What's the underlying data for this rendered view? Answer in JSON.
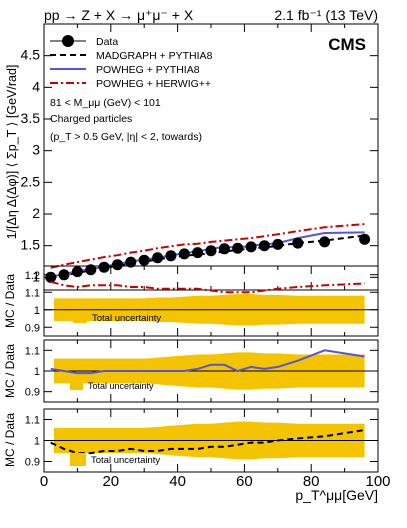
{
  "header": {
    "process": "pp → Z + X → μ⁺μ⁻ + X",
    "lumi": "2.1 fb⁻¹ (13 TeV)"
  },
  "chart_data": [
    {
      "type": "scatter",
      "panel": "main",
      "ylabel": "1/[Δη Δ(Δφ)] ⟨ Σp_T ⟩ [GeV/rad]",
      "ylim": [
        0.8,
        5.0
      ],
      "yticks": [
        "1",
        "1.5",
        "2",
        "2.5",
        "3",
        "3.5",
        "4",
        "4.5"
      ],
      "cms_label": "CMS",
      "annotations": [
        "81 < M_μμ (GeV) < 101",
        "Charged particles",
        "(p_T > 0.5 GeV, |η| < 2, towards)"
      ],
      "legend": [
        "Data",
        "MADGRAPH + PYTHIA8",
        "POWHEG + PYTHIA8",
        "POWHEG + HERWIG++"
      ],
      "legend_placement": "top-left",
      "x": [
        2,
        6,
        10,
        14,
        18,
        22,
        26,
        30,
        34,
        38,
        42,
        46,
        50,
        54,
        58,
        62,
        66,
        70,
        76,
        84,
        96
      ],
      "series": [
        {
          "name": "Data",
          "style": "points",
          "color": "#000000",
          "values": [
            1.0,
            1.04,
            1.09,
            1.12,
            1.16,
            1.2,
            1.24,
            1.27,
            1.31,
            1.34,
            1.37,
            1.39,
            1.42,
            1.45,
            1.46,
            1.48,
            1.5,
            1.52,
            1.54,
            1.56,
            1.6
          ]
        },
        {
          "name": "MADGRAPH + PYTHIA8",
          "style": "dashed",
          "color": "#000000",
          "values": [
            0.99,
            1.03,
            1.07,
            1.11,
            1.15,
            1.18,
            1.22,
            1.25,
            1.28,
            1.32,
            1.34,
            1.36,
            1.38,
            1.41,
            1.43,
            1.46,
            1.47,
            1.5,
            1.54,
            1.58,
            1.66
          ]
        },
        {
          "name": "POWHEG + PYTHIA8",
          "style": "solid",
          "color": "#5555dd",
          "values": [
            1.01,
            1.05,
            1.1,
            1.13,
            1.17,
            1.21,
            1.25,
            1.28,
            1.31,
            1.35,
            1.38,
            1.41,
            1.45,
            1.48,
            1.47,
            1.5,
            1.52,
            1.54,
            1.62,
            1.7,
            1.71
          ]
        },
        {
          "name": "POWHEG + HERWIG++",
          "style": "dashdot",
          "color": "#cc0000",
          "values": [
            1.15,
            1.2,
            1.24,
            1.28,
            1.32,
            1.35,
            1.39,
            1.42,
            1.46,
            1.49,
            1.52,
            1.53,
            1.56,
            1.58,
            1.6,
            1.62,
            1.65,
            1.68,
            1.73,
            1.79,
            1.84
          ]
        }
      ]
    },
    {
      "type": "line",
      "panel": "ratio-herwig",
      "ylabel": "MC / Data",
      "ylim": [
        0.85,
        1.25
      ],
      "yticks": [
        "0.9",
        "1",
        "1.1",
        "1.2"
      ],
      "legend": [
        "Total uncertainty"
      ],
      "x": [
        2,
        6,
        10,
        14,
        18,
        22,
        26,
        30,
        34,
        38,
        42,
        46,
        50,
        54,
        58,
        62,
        66,
        70,
        76,
        84,
        96
      ],
      "band_half_width": [
        0.065,
        0.065,
        0.065,
        0.065,
        0.065,
        0.065,
        0.065,
        0.065,
        0.07,
        0.07,
        0.075,
        0.08,
        0.08,
        0.085,
        0.09,
        0.09,
        0.085,
        0.085,
        0.08,
        0.08,
        0.08
      ],
      "series": [
        {
          "name": "POWHEG + HERWIG++",
          "color": "#cc0000",
          "values": [
            1.16,
            1.14,
            1.13,
            1.14,
            1.14,
            1.14,
            1.13,
            1.13,
            1.12,
            1.12,
            1.12,
            1.12,
            1.11,
            1.1,
            1.1,
            1.1,
            1.11,
            1.12,
            1.13,
            1.14,
            1.15
          ]
        }
      ]
    },
    {
      "type": "line",
      "panel": "ratio-pythia",
      "ylabel": "MC / Data",
      "ylim": [
        0.85,
        1.15
      ],
      "yticks": [
        "0.9",
        "1",
        "1.1"
      ],
      "legend": [
        "Total uncertainty"
      ],
      "x": [
        2,
        6,
        10,
        14,
        18,
        22,
        26,
        30,
        34,
        38,
        42,
        46,
        50,
        54,
        58,
        62,
        66,
        70,
        76,
        84,
        96
      ],
      "band_half_width": [
        0.06,
        0.06,
        0.06,
        0.06,
        0.06,
        0.06,
        0.06,
        0.06,
        0.065,
        0.07,
        0.075,
        0.08,
        0.08,
        0.085,
        0.09,
        0.09,
        0.085,
        0.085,
        0.08,
        0.08,
        0.08
      ],
      "series": [
        {
          "name": "POWHEG + PYTHIA8",
          "color": "#5555dd",
          "values": [
            1.01,
            1.0,
            0.99,
            0.99,
            1.0,
            1.0,
            1.0,
            1.0,
            1.0,
            1.0,
            1.0,
            1.01,
            1.03,
            1.03,
            1.0,
            1.02,
            1.01,
            1.02,
            1.05,
            1.1,
            1.07
          ]
        }
      ]
    },
    {
      "type": "line",
      "panel": "ratio-madgraph",
      "ylabel": "MC / Data",
      "ylim": [
        0.85,
        1.15
      ],
      "yticks": [
        "0.9",
        "1",
        "1.1"
      ],
      "xlabel": "p_T^μμ[GeV]",
      "xlim": [
        0,
        100
      ],
      "xticks": [
        "0",
        "20",
        "40",
        "60",
        "80",
        "100"
      ],
      "legend": [
        "Total uncertainty"
      ],
      "x": [
        2,
        6,
        10,
        14,
        18,
        22,
        26,
        30,
        34,
        38,
        42,
        46,
        50,
        54,
        58,
        62,
        66,
        70,
        76,
        84,
        96
      ],
      "band_half_width": [
        0.06,
        0.06,
        0.06,
        0.06,
        0.06,
        0.06,
        0.06,
        0.06,
        0.065,
        0.07,
        0.075,
        0.08,
        0.08,
        0.085,
        0.09,
        0.09,
        0.085,
        0.085,
        0.08,
        0.08,
        0.08
      ],
      "series": [
        {
          "name": "MADGRAPH + PYTHIA8",
          "color": "#000000",
          "values": [
            0.99,
            0.96,
            0.94,
            0.94,
            0.95,
            0.95,
            0.96,
            0.95,
            0.95,
            0.96,
            0.96,
            0.96,
            0.97,
            0.97,
            0.98,
            0.99,
            0.99,
            1.0,
            1.01,
            1.02,
            1.05
          ]
        }
      ]
    }
  ]
}
